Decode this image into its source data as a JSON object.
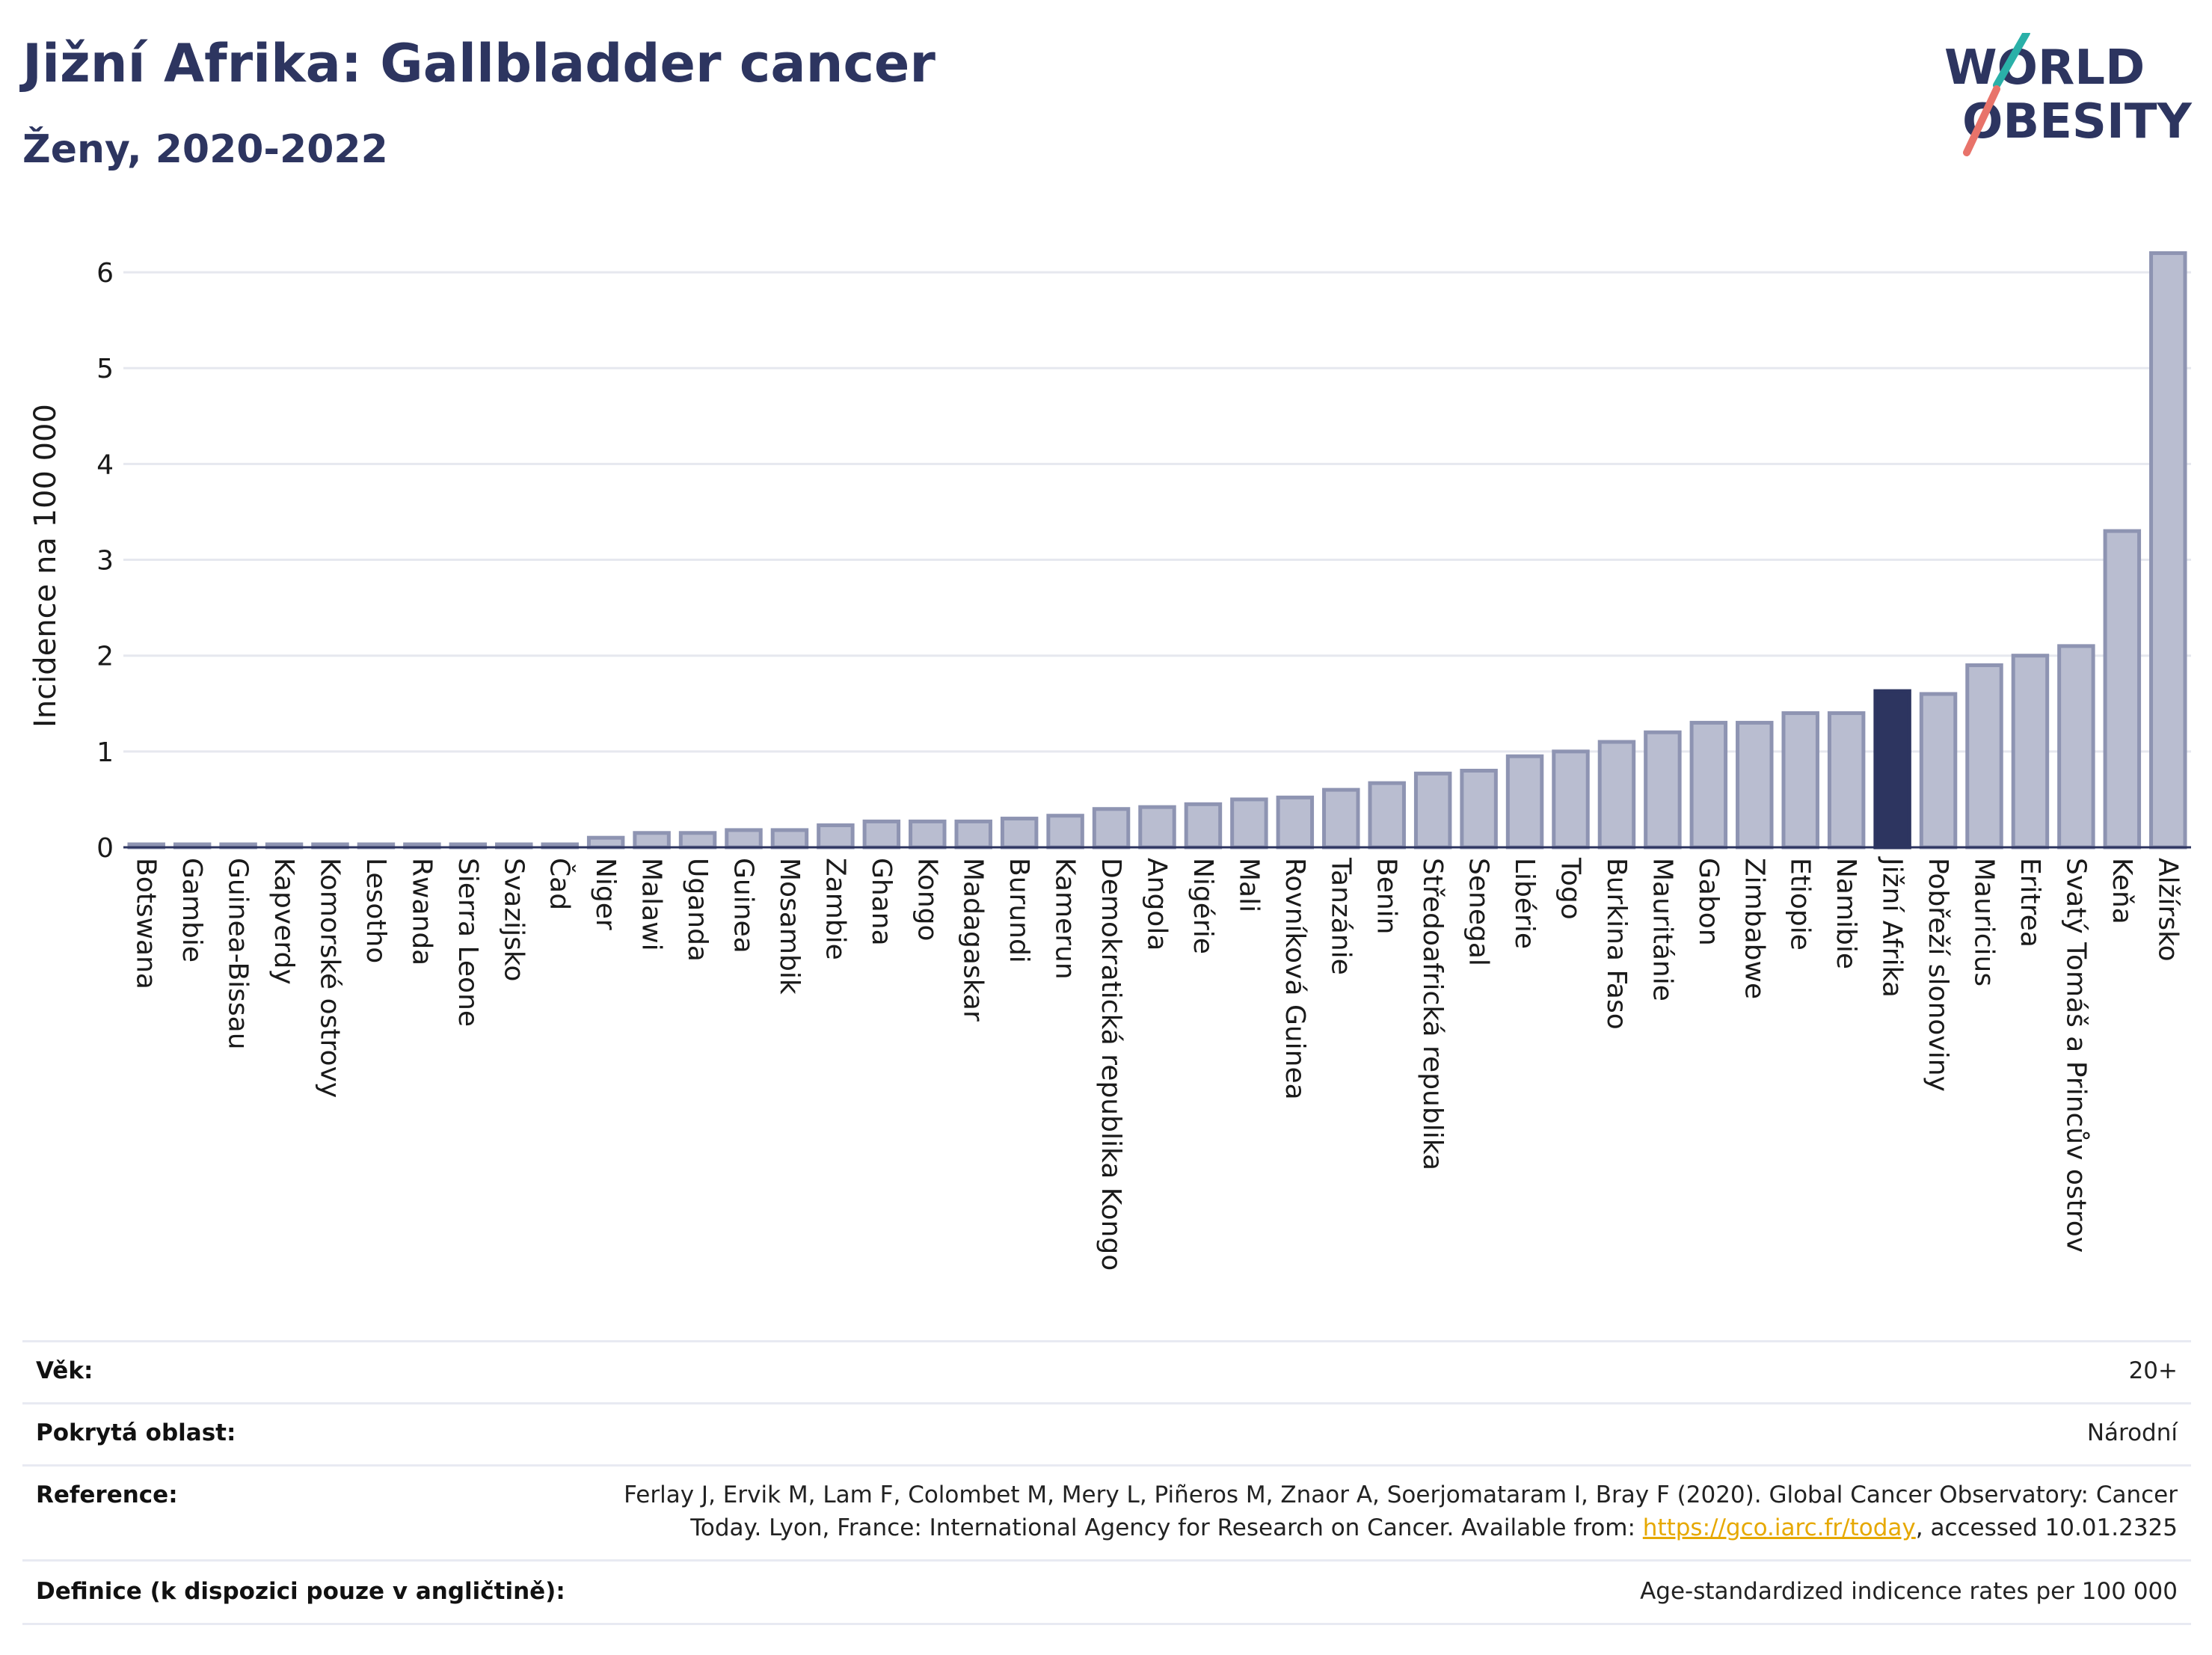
{
  "title": "Jižní Afrika: Gallbladder cancer",
  "subtitle": "Ženy, 2020-2022",
  "logo": {
    "line1": "WORLD",
    "line2": "OBESITY",
    "colors": {
      "text": "#2d3560",
      "teal": "#2ab0a8",
      "coral": "#e8736a"
    }
  },
  "colors": {
    "bar": "#b9bdd0",
    "bar_stroke": "#8e94b2",
    "highlight": "#2d3560",
    "grid": "#e6e8ef",
    "axis": "#2d3560"
  },
  "chart_data": {
    "type": "bar",
    "ylabel": "Incidence na 100 000",
    "ylim": [
      0,
      6.5
    ],
    "yticks": [
      0,
      1,
      2,
      3,
      4,
      5,
      6
    ],
    "grid": true,
    "highlight": "Jižní Afrika",
    "categories": [
      "Botswana",
      "Gambie",
      "Guinea-Bissau",
      "Kapverdy",
      "Komorské ostrovy",
      "Lesotho",
      "Rwanda",
      "Sierra Leone",
      "Svazijsko",
      "Čad",
      "Niger",
      "Malawi",
      "Uganda",
      "Guinea",
      "Mosambik",
      "Zambie",
      "Ghana",
      "Kongo",
      "Madagaskar",
      "Burundi",
      "Kamerun",
      "Demokratická republika Kongo",
      "Angola",
      "Nigérie",
      "Mali",
      "Rovníková Guinea",
      "Tanzánie",
      "Benin",
      "Středoafrická republika",
      "Senegal",
      "Libérie",
      "Togo",
      "Burkina Faso",
      "Mauritánie",
      "Gabon",
      "Zimbabwe",
      "Etiopie",
      "Namibie",
      "Jižní Afrika",
      "Pobřeží slonoviny",
      "Mauricius",
      "Eritrea",
      "Svatý Tomáš a Princův ostrov",
      "Keňa",
      "Alžírsko"
    ],
    "values": [
      0.02,
      0.02,
      0.02,
      0.02,
      0.02,
      0.02,
      0.02,
      0.02,
      0.02,
      0.02,
      0.1,
      0.15,
      0.15,
      0.18,
      0.18,
      0.23,
      0.27,
      0.27,
      0.27,
      0.3,
      0.33,
      0.4,
      0.42,
      0.45,
      0.5,
      0.52,
      0.6,
      0.67,
      0.77,
      0.8,
      0.95,
      1.0,
      1.1,
      1.2,
      1.3,
      1.3,
      1.4,
      1.4,
      1.63,
      1.6,
      1.9,
      2.0,
      2.1,
      3.3,
      6.2
    ]
  },
  "table": [
    {
      "label": "Věk:",
      "value": "20+"
    },
    {
      "label": "Pokrytá oblast:",
      "value": "Národní"
    },
    {
      "label": "Reference:",
      "value_line1": "Ferlay J, Ervik M, Lam F, Colombet M, Mery L, Piñeros M, Znaor A, Soerjomataram I, Bray F (2020). Global Cancer Observatory: Cancer",
      "value_line2_pre": "Today. Lyon, France: International Agency for Research on Cancer. Available from: ",
      "link": "https://gco.iarc.fr/today",
      "value_line2_post": ", accessed 10.01.2325"
    },
    {
      "label": "Definice (k dispozici pouze v angličtině):",
      "value": "Age-standardized indicence rates per 100 000"
    }
  ]
}
